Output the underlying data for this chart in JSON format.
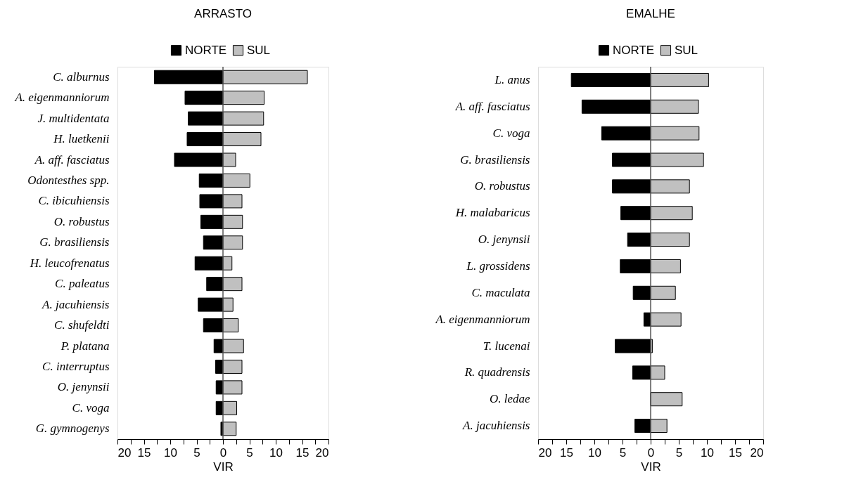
{
  "chart_data": [
    {
      "type": "bar",
      "orientation": "horizontal",
      "stacked": true,
      "title": "ARRASTO",
      "xlabel": "VIR",
      "legend": "top",
      "grid": false,
      "categories": [
        "C. alburnus",
        "A. eigenmanniorum",
        "J. multidentata",
        "H. luetkenii",
        "A. aff. fasciatus",
        "Odontesthes spp.",
        "C. ibicuhiensis",
        "O. robustus",
        "G. brasiliensis",
        "H. leucofrenatus",
        "C. paleatus",
        "A. jacuhiensis",
        "C. shufeldti",
        "P. platana",
        "C. interruptus",
        "O. jenynsii",
        "C. voga",
        "G. gymnogenys"
      ],
      "series": [
        {
          "name": "NORTE",
          "color": "#000000",
          "values": [
            -13.0,
            -7.2,
            -6.6,
            -6.8,
            -9.2,
            -4.5,
            -4.4,
            -4.2,
            -3.7,
            -5.3,
            -3.1,
            -4.7,
            -3.7,
            -1.7,
            -1.4,
            -1.3,
            -1.3,
            -0.4
          ]
        },
        {
          "name": "SUL",
          "color": "#c0c0c0",
          "values": [
            16.0,
            7.8,
            7.7,
            7.2,
            2.4,
            5.1,
            3.6,
            3.7,
            3.7,
            1.7,
            3.6,
            1.9,
            2.9,
            3.9,
            3.6,
            3.6,
            2.6,
            2.5
          ]
        }
      ],
      "xlim": [
        -20,
        20
      ],
      "xticks": [
        {
          "value": -20,
          "label": "20"
        },
        {
          "value": -17.5,
          "label": null
        },
        {
          "value": -15,
          "label": "15"
        },
        {
          "value": -12.5,
          "label": null
        },
        {
          "value": -10,
          "label": "10"
        },
        {
          "value": -7.5,
          "label": null
        },
        {
          "value": -5,
          "label": "5"
        },
        {
          "value": -2.5,
          "label": null
        },
        0,
        {
          "value": 2.5,
          "label": null
        },
        5,
        {
          "value": 7.5,
          "label": null
        },
        10,
        {
          "value": 12.5,
          "label": null
        },
        15,
        {
          "value": 17.5,
          "label": null
        },
        20
      ],
      "ref_lines": [
        {
          "axis": "x",
          "value": 0,
          "color": "#555555"
        }
      ]
    },
    {
      "type": "bar",
      "orientation": "horizontal",
      "stacked": true,
      "title": "EMALHE",
      "xlabel": "VIR",
      "legend": "top",
      "grid": false,
      "categories": [
        "L. anus",
        "A. aff. fasciatus",
        "C. voga",
        "G. brasiliensis",
        "O. robustus",
        "H. malabaricus",
        "O. jenynsii",
        "L. grossidens",
        "C. maculata",
        "A. eigenmanniorum",
        "T. lucenai",
        "R. quadrensis",
        "O. ledae",
        "A. jacuhiensis"
      ],
      "series": [
        {
          "name": "NORTE",
          "color": "#000000",
          "values": [
            -14.1,
            -12.2,
            -8.7,
            -6.8,
            -6.8,
            -5.3,
            -4.1,
            -5.4,
            -3.1,
            -1.2,
            -6.3,
            -3.2,
            null,
            -2.8
          ]
        },
        {
          "name": "SUL",
          "color": "#c0c0c0",
          "values": [
            10.3,
            8.5,
            8.6,
            9.4,
            6.9,
            7.4,
            6.9,
            5.3,
            4.4,
            5.4,
            0.3,
            2.5,
            5.6,
            2.9
          ]
        }
      ],
      "xlim": [
        -20,
        20
      ],
      "xticks": [
        {
          "value": -20,
          "label": "20"
        },
        {
          "value": -17.5,
          "label": null
        },
        {
          "value": -15,
          "label": "15"
        },
        {
          "value": -12.5,
          "label": null
        },
        {
          "value": -10,
          "label": "10"
        },
        {
          "value": -7.5,
          "label": null
        },
        {
          "value": -5,
          "label": "5"
        },
        {
          "value": -2.5,
          "label": null
        },
        0,
        {
          "value": 2.5,
          "label": null
        },
        5,
        {
          "value": 7.5,
          "label": null
        },
        10,
        {
          "value": 12.5,
          "label": null
        },
        15,
        {
          "value": 17.5,
          "label": null
        },
        20
      ],
      "ref_lines": [
        {
          "axis": "x",
          "value": 0,
          "color": "#555555"
        }
      ]
    }
  ]
}
